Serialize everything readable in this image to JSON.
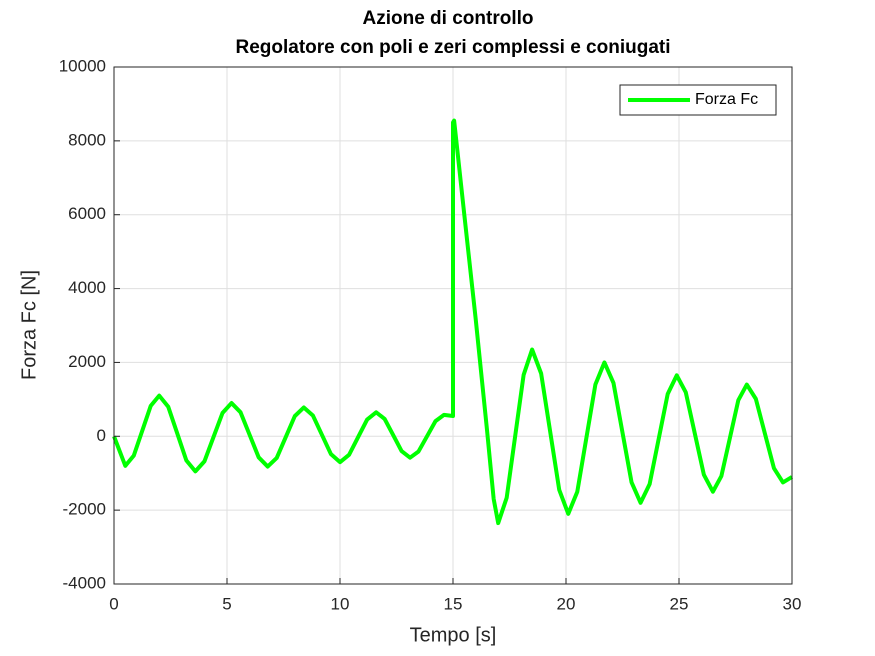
{
  "chart_data": {
    "type": "line",
    "title": "Azione di controllo",
    "subtitle": "Regolatore con poli e zeri complessi e coniugati",
    "x_label": "Tempo [s]",
    "y_label": "Forza Fc [N]",
    "xlim": [
      0,
      30
    ],
    "xticks": [
      0,
      5,
      10,
      15,
      20,
      25,
      30
    ],
    "ylim": [
      -4000,
      10000
    ],
    "yticks": [
      -4000,
      -2000,
      0,
      2000,
      4000,
      6000,
      8000,
      10000
    ],
    "grid": true,
    "legend": "top-right",
    "x": [
      0,
      0.25,
      0.5,
      0.875,
      1.25,
      1.625,
      2.0,
      2.4,
      2.8,
      3.2,
      3.6,
      4.0,
      4.4,
      4.8,
      5.2,
      5.6,
      6.0,
      6.4,
      6.8,
      7.2,
      7.6,
      8.0,
      8.4,
      8.8,
      9.2,
      9.6,
      10.0,
      10.4,
      10.8,
      11.2,
      11.6,
      11.975,
      12.35,
      12.725,
      13.1,
      13.475,
      13.85,
      14.225,
      14.6,
      15.0,
      15.0,
      15.05,
      15.5,
      16.0,
      16.5,
      16.8,
      17.0,
      17.375,
      17.75,
      18.125,
      18.5,
      18.9,
      19.3,
      19.7,
      20.1,
      20.5,
      20.9,
      21.3,
      21.7,
      22.1,
      22.5,
      22.9,
      23.3,
      23.7,
      24.1,
      24.5,
      24.9,
      25.3,
      25.7,
      26.1,
      26.5,
      26.875,
      27.25,
      27.625,
      28.0,
      28.4,
      28.8,
      29.2,
      29.6,
      30
    ],
    "series": [
      {
        "name": "Forza Fc",
        "color": "#00ff00",
        "values": [
          0,
          -400,
          -800,
          -523,
          150,
          823,
          1100,
          801,
          75,
          -651,
          -950,
          -680,
          -25,
          630,
          900,
          649,
          40,
          -569,
          -820,
          -586,
          -20,
          546,
          780,
          564,
          40,
          -484,
          -700,
          -503,
          -25,
          453,
          650,
          470,
          35,
          -400,
          -580,
          -411,
          0,
          411,
          580,
          550,
          8500,
          8550,
          6000,
          3200,
          200,
          -1700,
          -2350,
          -1664,
          0,
          1664,
          2350,
          1700,
          125,
          -1450,
          -2100,
          -1501,
          -50,
          1401,
          2000,
          1445,
          100,
          -1245,
          -1800,
          -1296,
          -75,
          1146,
          1650,
          1190,
          75,
          -1040,
          -1500,
          -1077,
          -50,
          977,
          1400,
          1013,
          75,
          -863,
          -1250,
          -1100
        ]
      }
    ]
  }
}
